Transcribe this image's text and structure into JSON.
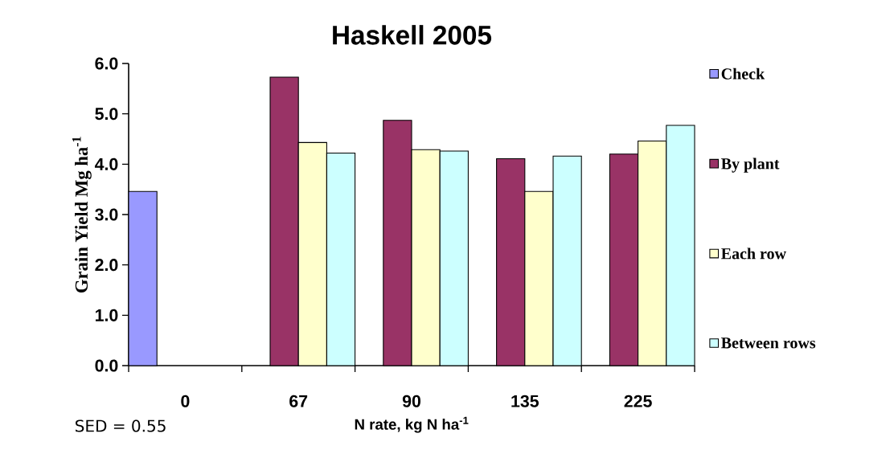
{
  "chart_data": {
    "type": "bar",
    "title": "Haskell 2005",
    "xlabel": "N rate, kg N ha$^{-1}$",
    "ylabel": "Grain Yield Mg ha$^{-1}$",
    "categories": [
      "0",
      "67",
      "90",
      "135",
      "225"
    ],
    "series": [
      {
        "name": "Check",
        "color": "#9999ff",
        "values": [
          3.46,
          null,
          null,
          null,
          null
        ]
      },
      {
        "name": "By plant",
        "color": "#993366",
        "values": [
          null,
          5.73,
          4.87,
          4.11,
          4.2
        ]
      },
      {
        "name": "Each row",
        "color": "#ffffcc",
        "values": [
          null,
          4.43,
          4.29,
          3.46,
          4.46
        ]
      },
      {
        "name": "Between rows",
        "color": "#ccffff",
        "values": [
          null,
          4.22,
          4.26,
          4.16,
          4.77
        ]
      }
    ],
    "ylim": [
      0,
      6
    ],
    "yticks": [
      {
        "value": 0,
        "label": "0.0"
      },
      {
        "value": 1,
        "label": "1.0"
      },
      {
        "value": 2,
        "label": "2.0"
      },
      {
        "value": 3,
        "label": "3.0"
      },
      {
        "value": 4,
        "label": "4.0"
      },
      {
        "value": 5,
        "label": "5.0"
      },
      {
        "value": 6,
        "label": "6.0"
      }
    ],
    "legend": "right",
    "annotations": [
      "SED = 0.55"
    ]
  }
}
